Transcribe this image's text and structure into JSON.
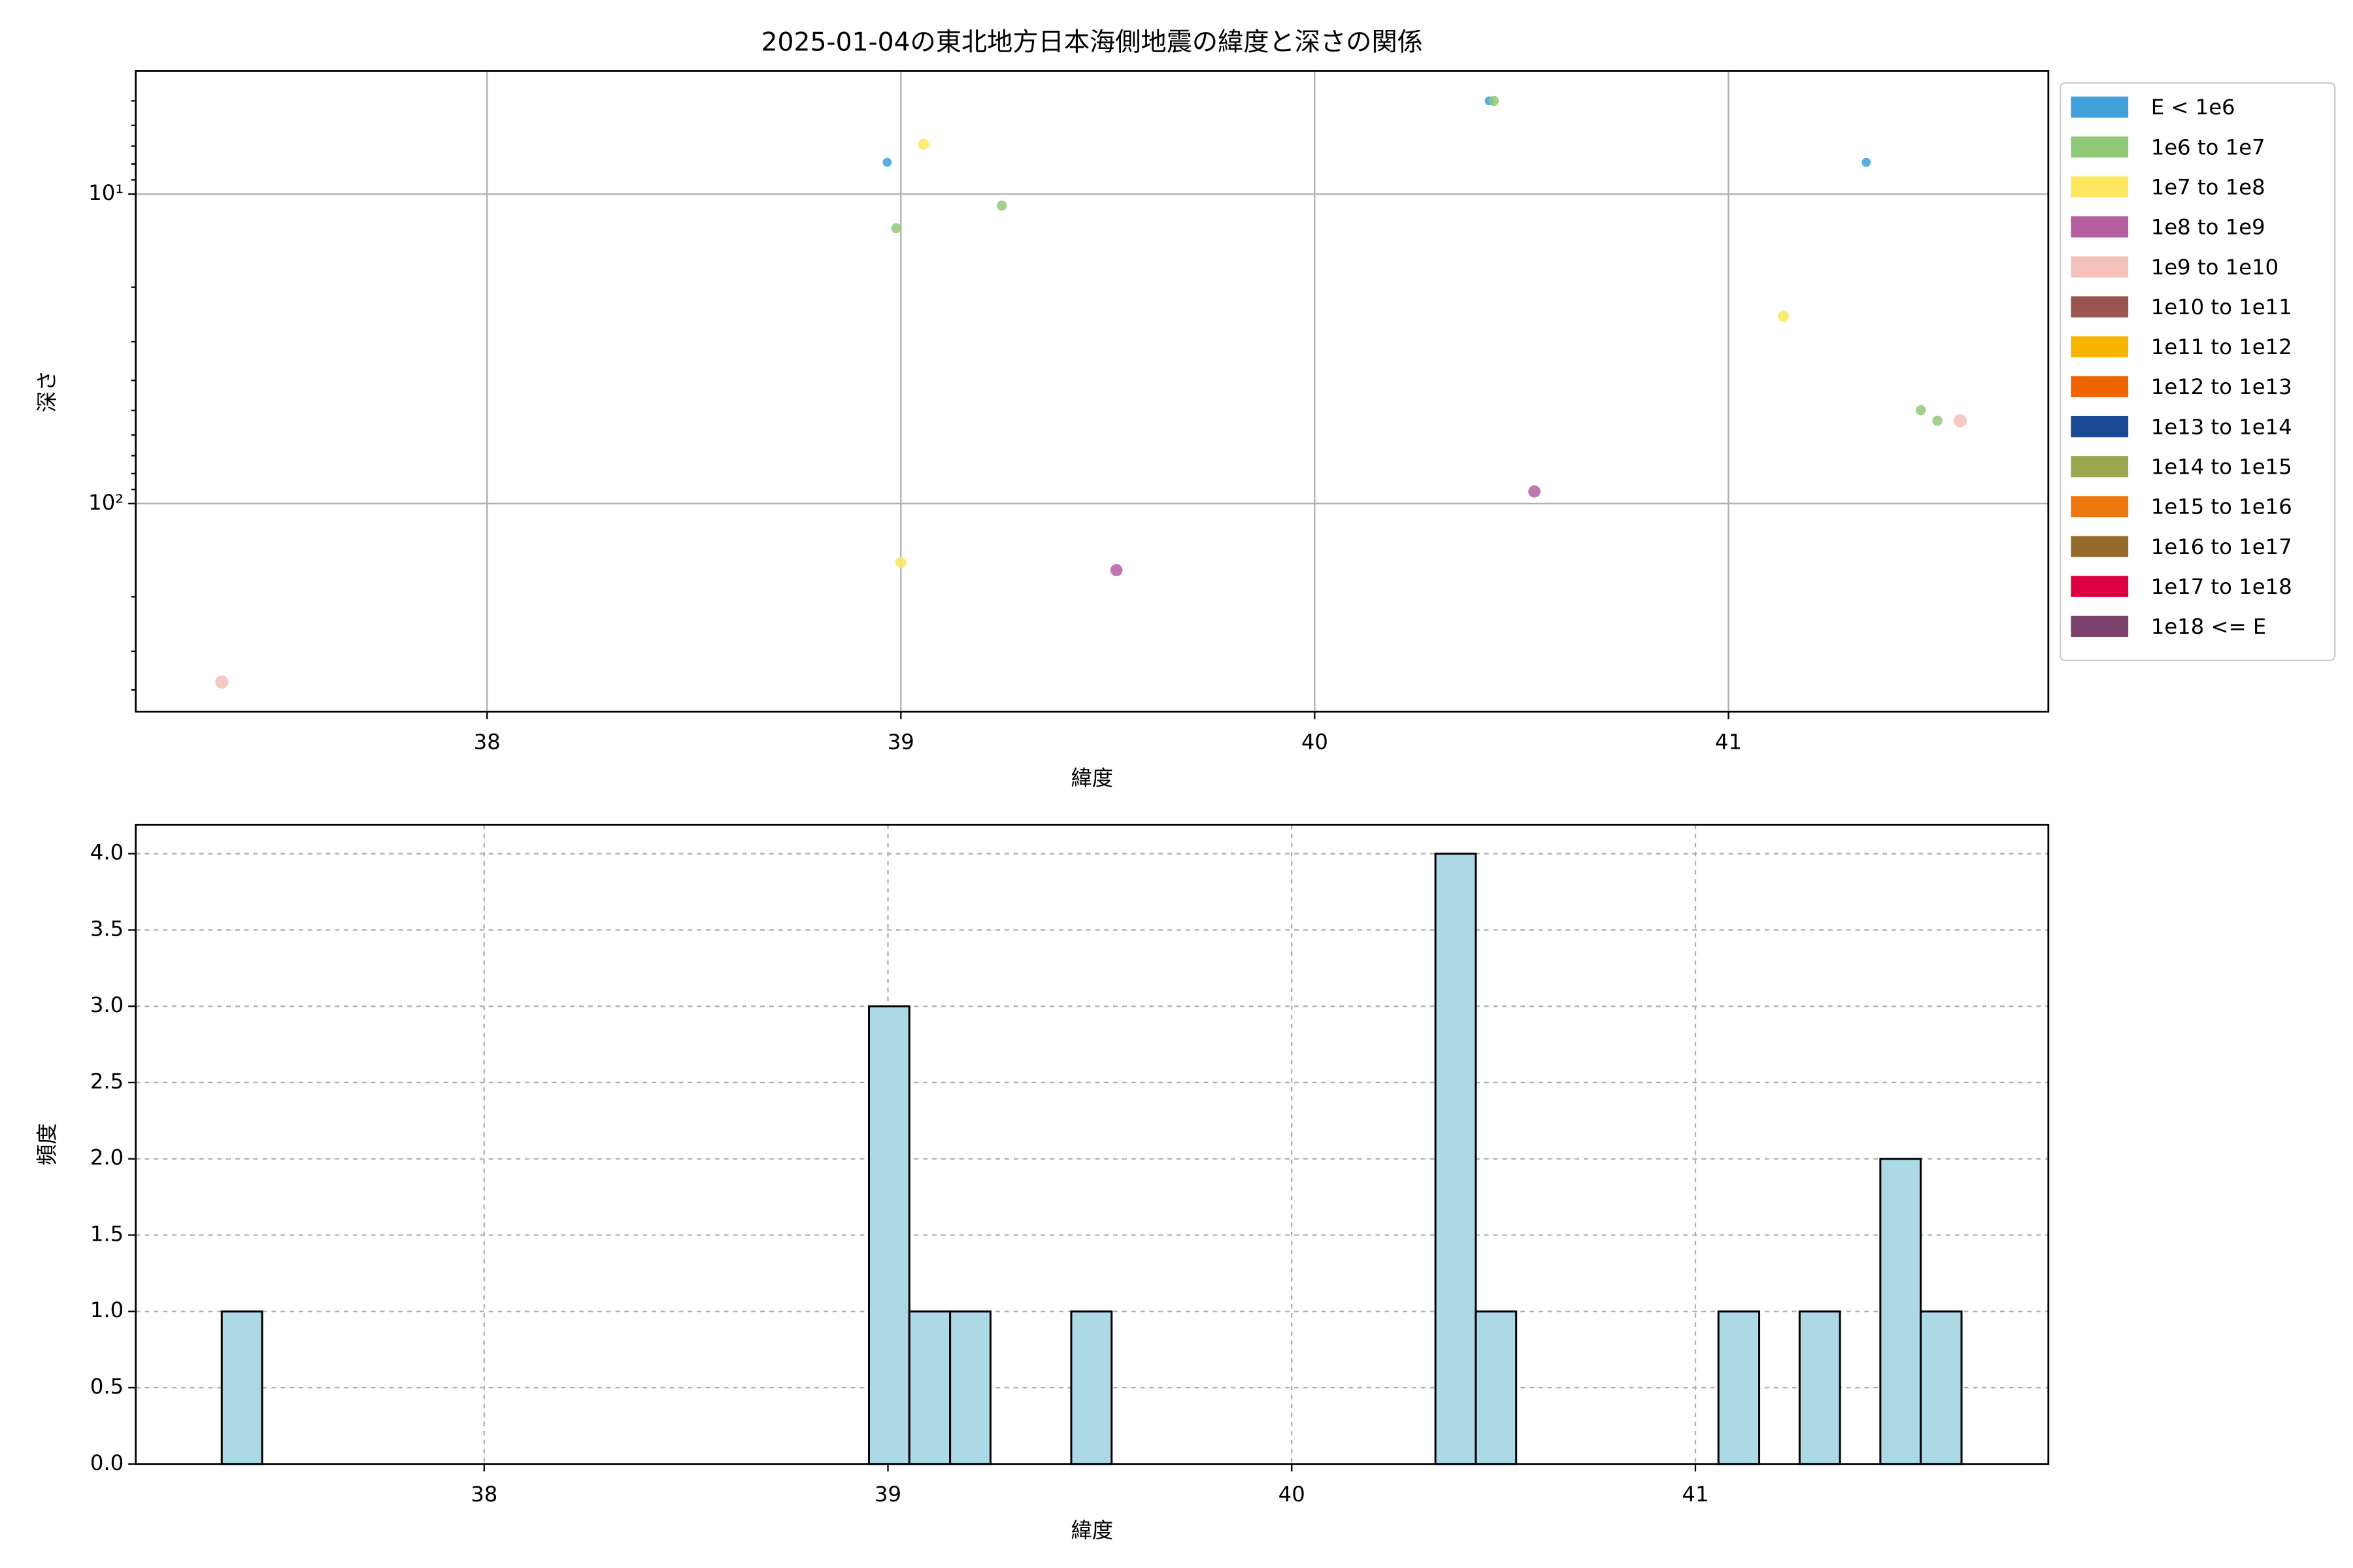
{
  "chart_data": [
    {
      "type": "scatter",
      "title": "2025-01-04の東北地方日本海側地震の緯度と深さの関係",
      "xlabel": "緯度",
      "ylabel": "深さ",
      "xlim": [
        37.151,
        41.773
      ],
      "xticks": [
        38,
        39,
        40,
        41
      ],
      "ylim": [
        4.0,
        470
      ],
      "log_y": true,
      "invert_y": true,
      "yticks": [
        {
          "value": 10,
          "label": "10¹"
        },
        {
          "value": 100,
          "label": "10²"
        }
      ],
      "yticks_minor": [
        5,
        6,
        7,
        8,
        9,
        20,
        30,
        40,
        50,
        60,
        70,
        80,
        90,
        200,
        300,
        400
      ],
      "grid": true,
      "grid_style": "solid",
      "legend": "outside-right",
      "series": [
        {
          "name": "E < 1e6",
          "color": "#3fa0dc",
          "x": [
            38.967,
            40.422,
            41.333
          ],
          "values": [
            7.9,
            5.0,
            7.9
          ]
        },
        {
          "name": "1e6 to 1e7",
          "color": "#90c978",
          "x": [
            38.989,
            39.244,
            40.433,
            41.465,
            41.505
          ],
          "values": [
            12.9,
            10.9,
            5.0,
            49.9,
            54
          ]
        },
        {
          "name": "1e7 to 1e8",
          "color": "#fde85f",
          "x": [
            39.055,
            41.133,
            39.0
          ],
          "values": [
            6.9,
            24.8,
            155
          ]
        },
        {
          "name": "1e8 to 1e9",
          "color": "#b55fa0",
          "x": [
            40.531,
            39.521
          ],
          "values": [
            91.4,
            164
          ]
        },
        {
          "name": "1e9 to 1e10",
          "color": "#f4c1ba",
          "x": [
            41.56,
            37.359
          ],
          "values": [
            54,
            377
          ]
        },
        {
          "name": "1e10 to 1e11",
          "color": "#9b5550",
          "x": [],
          "values": []
        },
        {
          "name": "1e11 to 1e12",
          "color": "#f7b500",
          "x": [],
          "values": []
        },
        {
          "name": "1e12 to 1e13",
          "color": "#ee6500",
          "x": [],
          "values": []
        },
        {
          "name": "1e13 to 1e14",
          "color": "#1b4a94",
          "x": [],
          "values": []
        },
        {
          "name": "1e14 to 1e15",
          "color": "#9ca84f",
          "x": [],
          "values": []
        },
        {
          "name": "1e15 to 1e16",
          "color": "#ec770f",
          "x": [],
          "values": []
        },
        {
          "name": "1e16 to 1e17",
          "color": "#946b2c",
          "x": [],
          "values": []
        },
        {
          "name": "1e17 to 1e18",
          "color": "#dc0041",
          "x": [],
          "values": []
        },
        {
          "name": "1e18 <= E",
          "color": "#7a426c",
          "x": [],
          "values": []
        }
      ]
    },
    {
      "type": "histogram",
      "xlabel": "緯度",
      "ylabel": "頻度",
      "xlim": [
        37.137,
        41.874
      ],
      "xticks": [
        38,
        39,
        40,
        41
      ],
      "ylim": [
        0,
        4.19
      ],
      "yticks": [
        {
          "value": 0,
          "label": "0.0"
        },
        0.5,
        {
          "value": 1,
          "label": "1.0"
        },
        1.5,
        {
          "value": 2,
          "label": "2.0"
        },
        2.5,
        {
          "value": 3,
          "label": "3.0"
        },
        3.5,
        {
          "value": 4,
          "label": "4.0"
        }
      ],
      "grid": true,
      "grid_style": "dashed",
      "color": "#add8e6",
      "edgecolor": "#000000",
      "bins": [
        37.35,
        37.45,
        37.55,
        37.651,
        37.751,
        37.851,
        37.951,
        38.051,
        38.152,
        38.252,
        38.352,
        38.452,
        38.552,
        38.653,
        38.753,
        38.853,
        38.953,
        39.053,
        39.154,
        39.254,
        39.354,
        39.454,
        39.554,
        39.655,
        39.755,
        39.855,
        39.955,
        40.055,
        40.156,
        40.256,
        40.356,
        40.456,
        40.556,
        40.657,
        40.757,
        40.857,
        40.957,
        41.057,
        41.158,
        41.258,
        41.358,
        41.458,
        41.558,
        41.659
      ],
      "values": [
        1,
        0,
        0,
        0,
        0,
        0,
        0,
        0,
        0,
        0,
        0,
        0,
        0,
        0,
        0,
        0,
        3,
        1,
        1,
        0,
        0,
        1,
        0,
        0,
        0,
        0,
        0,
        0,
        0,
        0,
        4,
        1,
        0,
        0,
        0,
        0,
        0,
        1,
        0,
        1,
        0,
        2,
        1
      ]
    }
  ]
}
